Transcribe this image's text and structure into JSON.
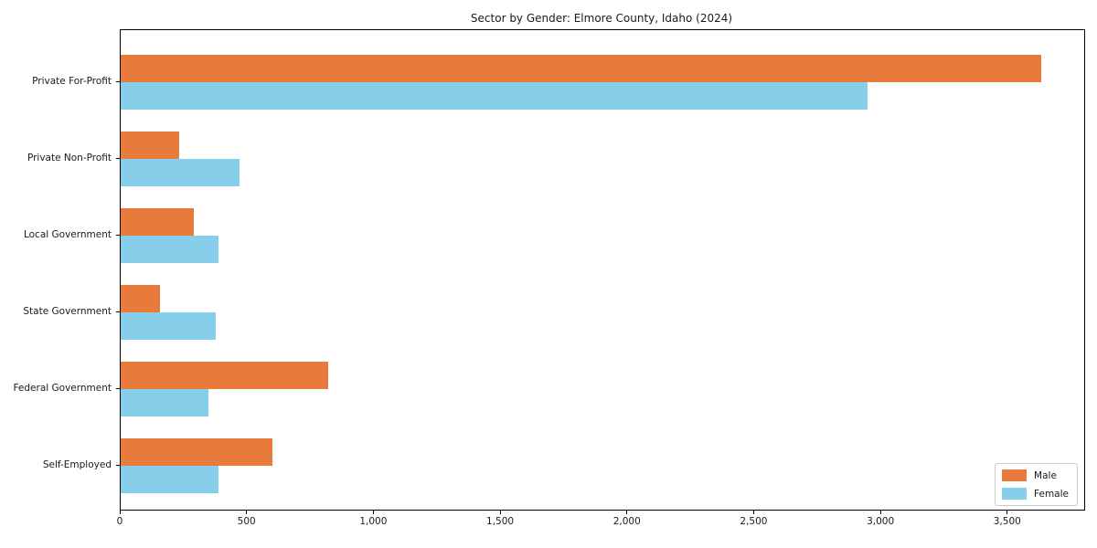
{
  "figure": {
    "title": "Sector by Gender: Elmore County, Idaho (2024)"
  },
  "chart_data": {
    "type": "bar",
    "orientation": "horizontal",
    "title": "Sector by Gender: Elmore County, Idaho (2024)",
    "categories": [
      "Private For-Profit",
      "Private Non-Profit",
      "Local Government",
      "State Government",
      "Federal Government",
      "Self-Employed"
    ],
    "series": [
      {
        "name": "Male",
        "color": "#e87a3c",
        "values": [
          3630,
          230,
          290,
          155,
          820,
          600
        ]
      },
      {
        "name": "Female",
        "color": "#87ceeb",
        "values": [
          2945,
          470,
          385,
          375,
          345,
          385
        ]
      }
    ],
    "xlim": [
      0,
      3800
    ],
    "xticks": [
      0,
      500,
      1000,
      1500,
      2000,
      2500,
      3000,
      3500
    ],
    "xtick_labels": [
      "0",
      "500",
      "1,000",
      "1,500",
      "2,000",
      "2,500",
      "3,000",
      "3,500"
    ],
    "xlabel": "",
    "ylabel": "",
    "grid": false,
    "legend": {
      "position": "lower-right",
      "items": [
        "Male",
        "Female"
      ]
    },
    "colors": {
      "axis": "#000000",
      "text": "#1a1a1a",
      "background": "#ffffff",
      "legend_border": "#cccccc"
    }
  }
}
